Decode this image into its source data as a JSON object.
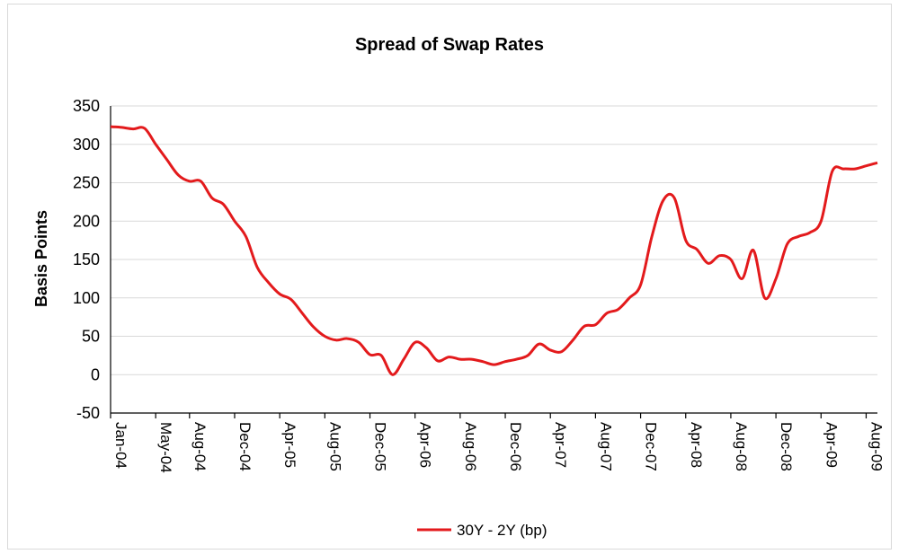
{
  "chart_data": {
    "type": "line",
    "title": "Spread of Swap Rates",
    "xlabel": "",
    "ylabel": "Basis  Points",
    "ylim": [
      -50,
      350
    ],
    "yticks": [
      -50,
      0,
      50,
      100,
      150,
      200,
      250,
      300,
      350
    ],
    "grid": true,
    "legend": "bottom",
    "x_tick_labels": [
      "Jan-04",
      "May-04",
      "Aug-04",
      "Dec-04",
      "Apr-05",
      "Aug-05",
      "Dec-05",
      "Apr-06",
      "Aug-06",
      "Dec-06",
      "Apr-07",
      "Aug-07",
      "Dec-07",
      "Apr-08",
      "Aug-08",
      "Dec-08",
      "Apr-09",
      "Aug-09"
    ],
    "series": [
      {
        "name": "30Y - 2Y (bp)",
        "color": "#e31a1c",
        "x": [
          "2004-01",
          "2004-02",
          "2004-03",
          "2004-04",
          "2004-05",
          "2004-06",
          "2004-07",
          "2004-08",
          "2004-09",
          "2004-10",
          "2004-11",
          "2004-12",
          "2005-01",
          "2005-02",
          "2005-03",
          "2005-04",
          "2005-05",
          "2005-06",
          "2005-07",
          "2005-08",
          "2005-09",
          "2005-10",
          "2005-11",
          "2005-12",
          "2006-01",
          "2006-02",
          "2006-03",
          "2006-04",
          "2006-05",
          "2006-06",
          "2006-07",
          "2006-08",
          "2006-09",
          "2006-10",
          "2006-11",
          "2006-12",
          "2007-01",
          "2007-02",
          "2007-03",
          "2007-04",
          "2007-05",
          "2007-06",
          "2007-07",
          "2007-08",
          "2007-09",
          "2007-10",
          "2007-11",
          "2007-12",
          "2008-01",
          "2008-02",
          "2008-03",
          "2008-04",
          "2008-05",
          "2008-06",
          "2008-07",
          "2008-08",
          "2008-09",
          "2008-10",
          "2008-11",
          "2008-12",
          "2009-01",
          "2009-02",
          "2009-03",
          "2009-04",
          "2009-05",
          "2009-06",
          "2009-07",
          "2009-08",
          "2009-09"
        ],
        "values": [
          323,
          322,
          320,
          321,
          300,
          280,
          260,
          252,
          252,
          230,
          222,
          200,
          180,
          140,
          120,
          105,
          98,
          80,
          62,
          50,
          45,
          47,
          42,
          26,
          25,
          0,
          20,
          42,
          35,
          18,
          23,
          20,
          20,
          17,
          13,
          17,
          20,
          25,
          40,
          32,
          30,
          45,
          63,
          65,
          80,
          85,
          100,
          117,
          180,
          227,
          230,
          175,
          163,
          145,
          155,
          150,
          125,
          162,
          100,
          125,
          170,
          180,
          185,
          200,
          265,
          268,
          268,
          272,
          276
        ]
      }
    ]
  }
}
